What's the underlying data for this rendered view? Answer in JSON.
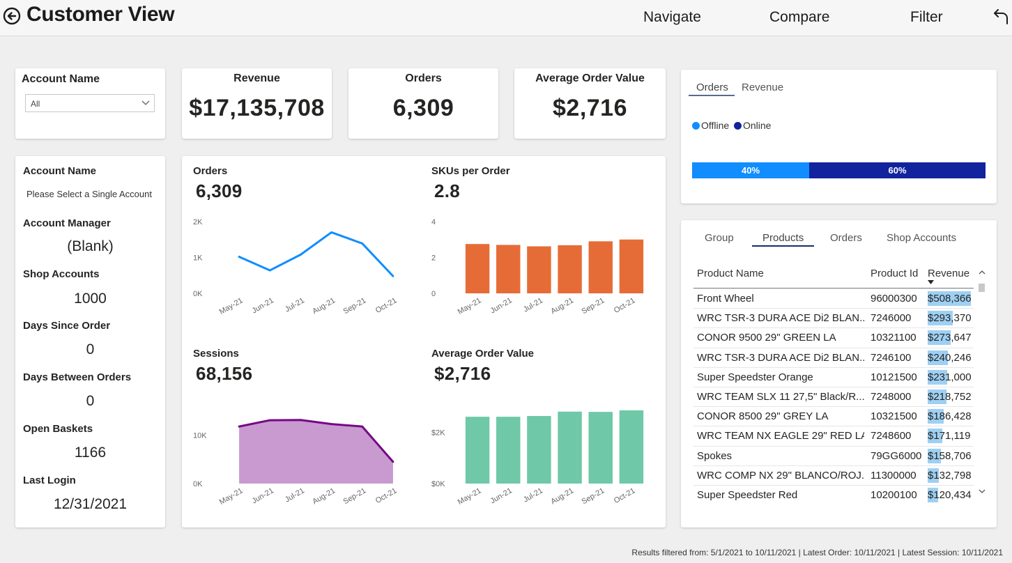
{
  "header": {
    "title": "Customer View",
    "nav": [
      "Navigate",
      "Compare",
      "Filter"
    ]
  },
  "account_slicer": {
    "title": "Account Name",
    "value": "All"
  },
  "kpis": [
    {
      "title": "Revenue",
      "value": "$17,135,708"
    },
    {
      "title": "Orders",
      "value": "6,309"
    },
    {
      "title": "Average Order Value",
      "value": "$2,716"
    }
  ],
  "account_info": {
    "account_name_label": "Account Name",
    "account_name_note": "Please Select a Single Account",
    "items": [
      {
        "label": "Account Manager",
        "value": "(Blank)"
      },
      {
        "label": "Shop Accounts",
        "value": "1000"
      },
      {
        "label": "Days Since Order",
        "value": "0"
      },
      {
        "label": "Days Between Orders",
        "value": "0"
      },
      {
        "label": "Open Baskets",
        "value": "1166"
      },
      {
        "label": "Last Login",
        "value": "12/31/2021"
      }
    ]
  },
  "chart_data": [
    {
      "type": "line",
      "title": "Orders",
      "headline": "6,309",
      "categories": [
        "May-21",
        "Jun-21",
        "Jul-21",
        "Aug-21",
        "Sep-21",
        "Oct-21"
      ],
      "values": [
        1020,
        640,
        1080,
        1700,
        1390,
        480
      ],
      "yticks": [
        "0K",
        "1K",
        "2K"
      ],
      "ylim": [
        0,
        2000
      ],
      "color": "#118dff"
    },
    {
      "type": "bar",
      "title": "SKUs per Order",
      "headline": "2.8",
      "categories": [
        "May-21",
        "Jun-21",
        "Jul-21",
        "Aug-21",
        "Sep-21",
        "Oct-21"
      ],
      "values": [
        2.75,
        2.7,
        2.62,
        2.68,
        2.9,
        3.0
      ],
      "yticks": [
        "0",
        "2",
        "4"
      ],
      "ylim": [
        0,
        4
      ],
      "color": "#e66c37"
    },
    {
      "type": "area",
      "title": "Sessions",
      "headline": "68,156",
      "categories": [
        "May-21",
        "Jun-21",
        "Jul-21",
        "Aug-21",
        "Sep-21",
        "Oct-21"
      ],
      "values": [
        11800,
        13100,
        13150,
        12300,
        11800,
        4500
      ],
      "yticks": [
        "0K",
        "10K"
      ],
      "ylim": [
        0,
        17000
      ],
      "color": "#750985",
      "fill": "#c89ad0"
    },
    {
      "type": "bar",
      "title": "Average Order Value",
      "headline": "$2,716",
      "categories": [
        "May-21",
        "Jun-21",
        "Jul-21",
        "Aug-21",
        "Sep-21",
        "Oct-21"
      ],
      "values": [
        2600,
        2600,
        2630,
        2800,
        2790,
        2850
      ],
      "yticks": [
        "$0K",
        "$2K"
      ],
      "ylim": [
        0,
        3200
      ],
      "color": "#6fc8a8"
    }
  ],
  "channel_split": {
    "tabs": [
      "Orders",
      "Revenue"
    ],
    "active_tab": "Orders",
    "legend": [
      {
        "name": "Offline",
        "color": "#118dff"
      },
      {
        "name": "Online",
        "color": "#12239e"
      }
    ],
    "segments": [
      {
        "label": "40%",
        "value": 40,
        "color": "#118dff"
      },
      {
        "label": "60%",
        "value": 60,
        "color": "#12239e"
      }
    ]
  },
  "products": {
    "tabs": [
      "Group",
      "Products",
      "Orders",
      "Shop Accounts"
    ],
    "active_tab": "Products",
    "columns": [
      "Product Name",
      "Product Id",
      "Revenue"
    ],
    "max_revenue": 508366,
    "rows": [
      {
        "name": "Front Wheel",
        "id": "96000300",
        "revenue": "$508,366",
        "value": 508366
      },
      {
        "name": "WRC TSR-3 DURA ACE Di2 BLAN...",
        "id": "7246000",
        "revenue": "$293,370",
        "value": 293370
      },
      {
        "name": "CONOR 9500 29\" GREEN LA",
        "id": "10321100",
        "revenue": "$273,647",
        "value": 273647
      },
      {
        "name": "WRC TSR-3 DURA ACE Di2 BLAN...",
        "id": "7246100",
        "revenue": "$240,246",
        "value": 240246
      },
      {
        "name": "Super Speedster Orange",
        "id": "10121500",
        "revenue": "$231,000",
        "value": 231000
      },
      {
        "name": "WRC TEAM SLX 11 27,5\" Black/R...",
        "id": "7248000",
        "revenue": "$218,752",
        "value": 218752
      },
      {
        "name": "CONOR 8500 29\" GREY LA",
        "id": "10321500",
        "revenue": "$186,428",
        "value": 186428
      },
      {
        "name": "WRC TEAM NX EAGLE 29\" RED LA",
        "id": "7248600",
        "revenue": "$171,119",
        "value": 171119
      },
      {
        "name": "Spokes",
        "id": "79GG6000",
        "revenue": "$158,706",
        "value": 158706
      },
      {
        "name": "WRC COMP NX 29\" BLANCO/ROJ...",
        "id": "11300000",
        "revenue": "$132,798",
        "value": 132798
      },
      {
        "name": "Super Speedster Red",
        "id": "10200100",
        "revenue": "$120,434",
        "value": 120434
      }
    ]
  },
  "footer": "Results filtered from: 5/1/2021 to 10/11/2021  |  Latest Order: 10/11/2021  |  Latest Session: 10/11/2021"
}
